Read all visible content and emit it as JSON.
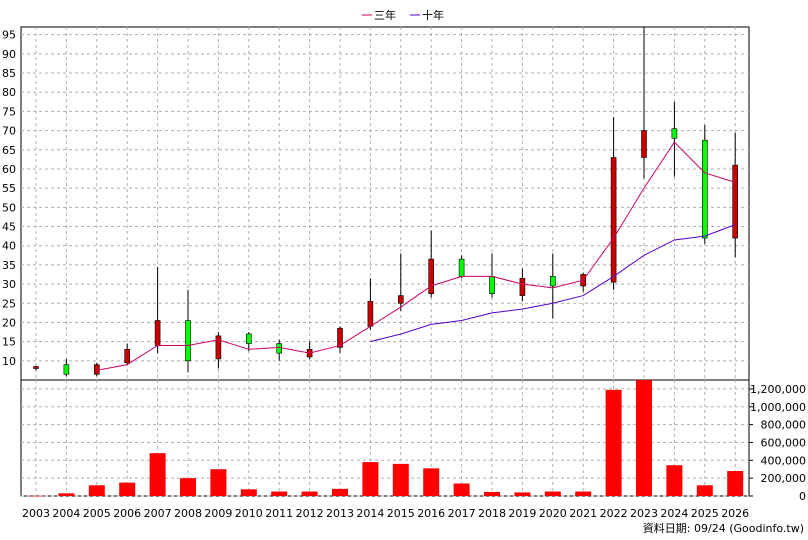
{
  "chart_data": {
    "type": "candlestick+line+bar",
    "legend": [
      {
        "name": "三年",
        "color": "#cc0066"
      },
      {
        "name": "十年",
        "color": "#5500cc"
      }
    ],
    "years": [
      "2003",
      "2004",
      "2005",
      "2006",
      "2007",
      "2008",
      "2009",
      "2010",
      "2011",
      "2012",
      "2013",
      "2014",
      "2015",
      "2016",
      "2017",
      "2018",
      "2019",
      "2020",
      "2021",
      "2022",
      "2023",
      "2024",
      "2025",
      "2026"
    ],
    "price_axis": {
      "min": 5,
      "max": 97,
      "ticks": [
        "10",
        "15",
        "20",
        "25",
        "30",
        "35",
        "40",
        "45",
        "50",
        "55",
        "60",
        "65",
        "70",
        "75",
        "80",
        "85",
        "90",
        "95"
      ]
    },
    "volume_axis": {
      "min": 0,
      "max": 1300000,
      "ticks": [
        "0",
        "200,000",
        "400,000",
        "600,000",
        "800,000",
        "1,000,000",
        "1,200,000"
      ]
    },
    "candles": [
      {
        "open": 8.5,
        "close": 8.0,
        "high": 8.7,
        "low": 7.5
      },
      {
        "open": 6.5,
        "close": 9.0,
        "high": 10.5,
        "low": 6.0
      },
      {
        "open": 9.0,
        "close": 6.5,
        "high": 9.5,
        "low": 6.0
      },
      {
        "open": 13.0,
        "close": 9.5,
        "high": 14.5,
        "low": 9.0
      },
      {
        "open": 20.5,
        "close": 14.0,
        "high": 34.5,
        "low": 12.0
      },
      {
        "open": 10.0,
        "close": 20.5,
        "high": 28.5,
        "low": 7.0
      },
      {
        "open": 16.5,
        "close": 10.5,
        "high": 17.5,
        "low": 8.0
      },
      {
        "open": 14.5,
        "close": 17.0,
        "high": 17.5,
        "low": 12.5
      },
      {
        "open": 12.0,
        "close": 14.5,
        "high": 15.5,
        "low": 10.0
      },
      {
        "open": 13.0,
        "close": 11.0,
        "high": 15.0,
        "low": 10.5
      },
      {
        "open": 18.5,
        "close": 13.5,
        "high": 19.0,
        "low": 12.0
      },
      {
        "open": 25.5,
        "close": 19.0,
        "high": 31.5,
        "low": 18.0
      },
      {
        "open": 27.0,
        "close": 25.0,
        "high": 38.0,
        "low": 23.0
      },
      {
        "open": 36.5,
        "close": 27.5,
        "high": 44.0,
        "low": 26.5
      },
      {
        "open": 32.0,
        "close": 36.5,
        "high": 37.5,
        "low": 31.5
      },
      {
        "open": 27.5,
        "close": 32.0,
        "high": 38.0,
        "low": 26.5
      },
      {
        "open": 31.5,
        "close": 27.0,
        "high": 34.0,
        "low": 25.5
      },
      {
        "open": 29.5,
        "close": 32.0,
        "high": 38.0,
        "low": 21.0
      },
      {
        "open": 32.5,
        "close": 29.5,
        "high": 33.0,
        "low": 28.0
      },
      {
        "open": 63.0,
        "close": 30.5,
        "high": 73.5,
        "low": 28.5
      },
      {
        "open": 70.0,
        "close": 63.0,
        "high": 97.0,
        "low": 57.5
      },
      {
        "open": 68.0,
        "close": 70.5,
        "high": 77.5,
        "low": 58.0
      },
      {
        "open": 42.0,
        "close": 67.5,
        "high": 71.5,
        "low": 40.5
      },
      {
        "open": 61.0,
        "close": 42.0,
        "high": 69.5,
        "low": 37.0
      }
    ],
    "series": [
      {
        "name": "三年",
        "x_start_index": 2,
        "values": [
          7.5,
          9.0,
          14.0,
          14.0,
          15.5,
          13.0,
          13.5,
          12.0,
          14.0,
          19.0,
          24.0,
          29.5,
          32.0,
          32.0,
          30.0,
          29.0,
          31.0,
          42.0,
          55.0,
          67.0,
          59.0,
          56.5
        ]
      },
      {
        "name": "十年",
        "x_start_index": 11,
        "values": [
          15.0,
          17.0,
          19.5,
          20.5,
          22.5,
          23.5,
          25.0,
          27.0,
          32.0,
          37.5,
          41.5,
          42.5,
          45.5
        ]
      }
    ],
    "volume": [
      2000,
      30000,
      120000,
      150000,
      480000,
      200000,
      300000,
      75000,
      50000,
      50000,
      80000,
      380000,
      360000,
      310000,
      140000,
      45000,
      40000,
      50000,
      50000,
      1190000,
      1300000,
      345000,
      120000,
      280000
    ],
    "footer_note": "資料日期: 09/24  (Goodinfo.tw)"
  }
}
